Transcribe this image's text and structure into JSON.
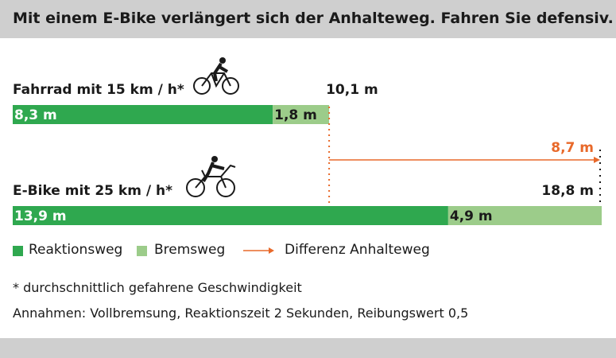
{
  "title": "Mit einem E-Bike verlängert sich der Anhalteweg. Fahren Sie defensiv.",
  "colors": {
    "reaktion": "#2fa84f",
    "brems": "#9ccc8a",
    "differenz": "#e8692a",
    "header_bg": "#cfcfcf"
  },
  "chart_data": {
    "type": "bar",
    "orientation": "horizontal",
    "stacked": true,
    "unit": "m",
    "categories": [
      "Fahrrad mit 15 km / h*",
      "E-Bike mit 25 km / h*"
    ],
    "icons": [
      "bicycle-rider-icon",
      "ebike-rider-icon"
    ],
    "series": [
      {
        "name": "Reaktionsweg",
        "values": [
          8.3,
          13.9
        ],
        "labels": [
          "8,3 m",
          "13,9 m"
        ]
      },
      {
        "name": "Bremsweg",
        "values": [
          1.8,
          4.9
        ],
        "labels": [
          "1,8 m",
          "4,9 m"
        ]
      }
    ],
    "totals": [
      10.1,
      18.8
    ],
    "total_labels": [
      "10,1 m",
      "18,8 m"
    ],
    "difference": {
      "name": "Differenz Anhalteweg",
      "value": 8.7,
      "label": "8,7 m"
    },
    "xlim": [
      0,
      18.8
    ],
    "grid": false,
    "legend_position": "bottom-left"
  },
  "legend": {
    "reaktion": "Reaktionsweg",
    "brems": "Bremsweg",
    "differenz": "Differenz Anhalteweg"
  },
  "notes": {
    "footnote": "* durchschnittlich gefahrene Geschwindigkeit",
    "assumptions": "Annahmen: Vollbremsung, Reaktionszeit 2 Sekunden, Reibungswert 0,5"
  }
}
